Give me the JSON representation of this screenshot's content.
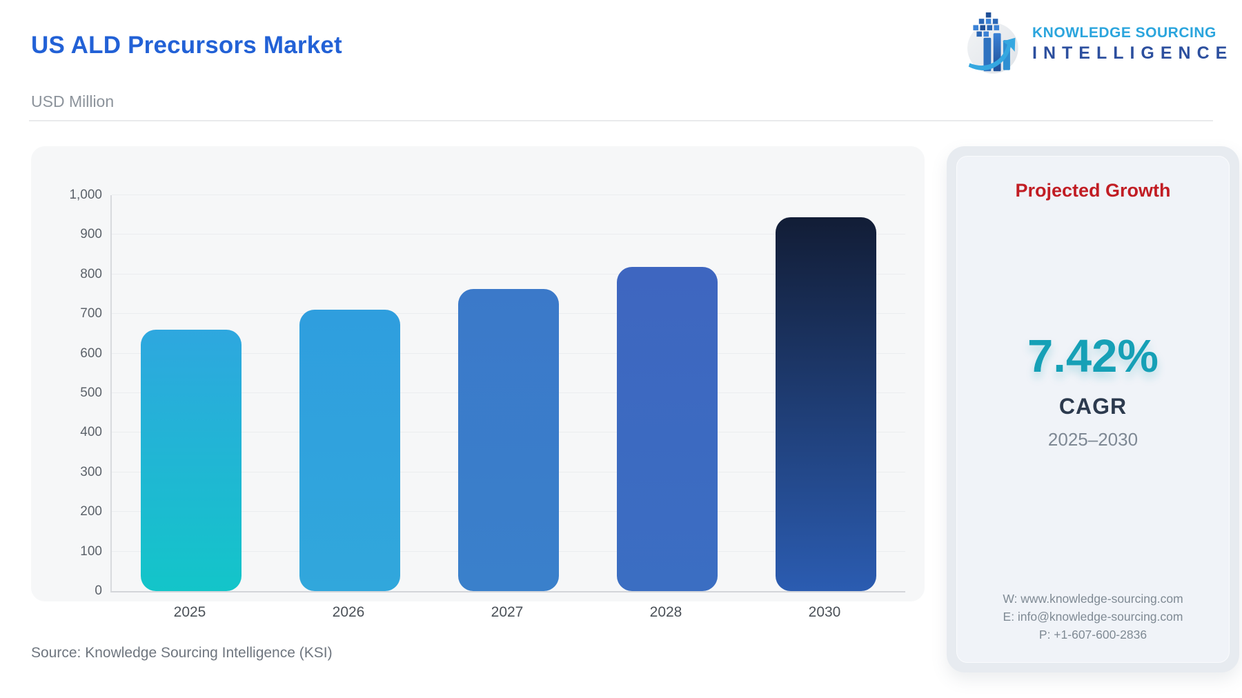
{
  "header": {
    "title": "US ALD Precursors Market",
    "subtitle": "USD Million"
  },
  "logo": {
    "line1": "KNOWLEDGE SOURCING",
    "line2": "INTELLIGENCE"
  },
  "chart_data": {
    "type": "bar",
    "title": "US ALD Precursors Market",
    "unit": "USD Million",
    "categories": [
      "2025",
      "2026",
      "2027",
      "2028",
      "2030"
    ],
    "values": [
      661,
      710,
      763,
      819,
      945
    ],
    "ylim": [
      0,
      1000
    ],
    "ytick_step": 100,
    "grid": true,
    "legend": "none",
    "bar_gradients": [
      [
        "#2EA7DF",
        "#13C5C9"
      ],
      [
        "#2F9EDE",
        "#31A7DC"
      ],
      [
        "#3B79C9",
        "#3A80CB"
      ],
      [
        "#3E66C0",
        "#3B6EC2"
      ],
      [
        "#121D36",
        "#2B5CB1"
      ]
    ]
  },
  "panel": {
    "title": "Projected Growth",
    "cagr_value": "7.42%",
    "cagr_label": "CAGR",
    "period": "2025–2030",
    "contact": {
      "web": "W: www.knowledge-sourcing.com",
      "email": "E: info@knowledge-sourcing.com",
      "phone": "P: +1-607-600-2836"
    }
  },
  "footer": {
    "source": "Source: Knowledge Sourcing Intelligence (KSI)"
  },
  "colors": {
    "title_blue": "#2261d6",
    "panel_title_red": "#c11d24",
    "cagr_teal": "#16a0b6",
    "card_bg": "#f6f7f8",
    "panel_bg": "#f0f3f8",
    "logo_light_blue": "#2ba5dd",
    "logo_navy": "#2c4f9e"
  }
}
